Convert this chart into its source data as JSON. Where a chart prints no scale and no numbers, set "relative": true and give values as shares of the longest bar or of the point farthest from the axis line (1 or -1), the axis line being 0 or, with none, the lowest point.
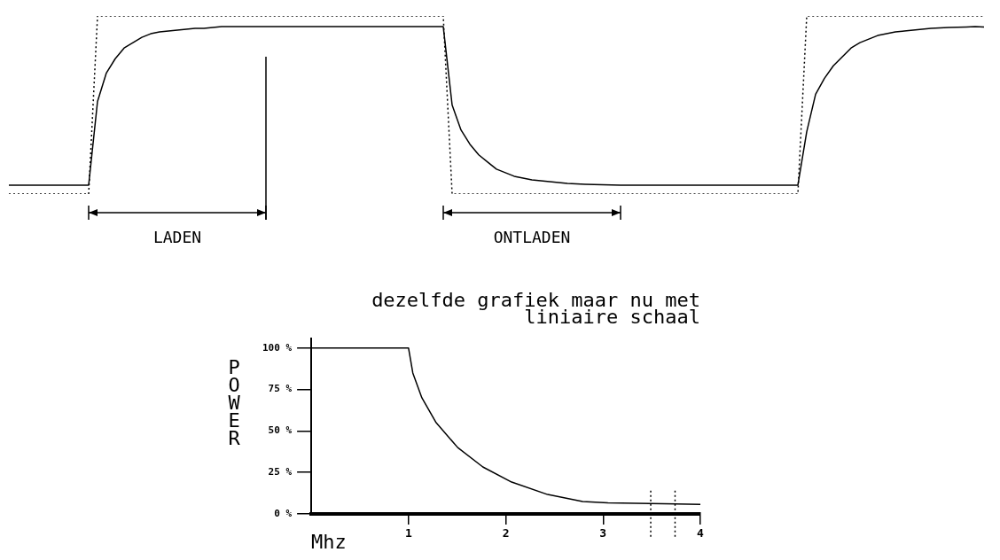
{
  "chart_data": [
    {
      "type": "line",
      "relative": true,
      "marker": "none",
      "categories": [
        null,
        null,
        null,
        null,
        null,
        null,
        null,
        null,
        null,
        null,
        null,
        null,
        null,
        null,
        null,
        null,
        null,
        null,
        null,
        null,
        null,
        null,
        null,
        null,
        null,
        null,
        null,
        null,
        null,
        null,
        null,
        null,
        null,
        null,
        null,
        null,
        null,
        null,
        null,
        null,
        null,
        null,
        null,
        null,
        null,
        null,
        null,
        null,
        null,
        null,
        null,
        null,
        null,
        null,
        null,
        null,
        null,
        null,
        null,
        null,
        null,
        null,
        null,
        null,
        null,
        null,
        null,
        null,
        null,
        null,
        null,
        null,
        null,
        null,
        null,
        null,
        null,
        null,
        null,
        null,
        null,
        null,
        null,
        null,
        null,
        null,
        null,
        null,
        null,
        null,
        null,
        null,
        null,
        null,
        null,
        null,
        null,
        null,
        null,
        null,
        null,
        null,
        null,
        null,
        null,
        null,
        null,
        null,
        null,
        null,
        null
      ],
      "series": [
        {
          "color": "#000000",
          "line_style": "dotted",
          "values": [
            0,
            0,
            0,
            0,
            0,
            0,
            0,
            0,
            0,
            0,
            1,
            1,
            1,
            1,
            1,
            1,
            1,
            1,
            1,
            1,
            1,
            1,
            1,
            1,
            1,
            1,
            1,
            1,
            1,
            1,
            1,
            1,
            1,
            1,
            1,
            1,
            1,
            1,
            1,
            1,
            1,
            1,
            1,
            1,
            1,
            1,
            1,
            1,
            1,
            1,
            0,
            0,
            0,
            0,
            0,
            0,
            0,
            0,
            0,
            0,
            0,
            0,
            0,
            0,
            0,
            0,
            0,
            0,
            0,
            0,
            0,
            0,
            0,
            0,
            0,
            0,
            0,
            0,
            0,
            0,
            0,
            0,
            0,
            0,
            0,
            0,
            0,
            0,
            0,
            0,
            1,
            1,
            1,
            1,
            1,
            1,
            1,
            1,
            1,
            1,
            1,
            1,
            1,
            1,
            1,
            1,
            1,
            1,
            1,
            1,
            1
          ]
        },
        {
          "color": "#000000",
          "line_style": "solid",
          "values": [
            0.05,
            0.05,
            0.05,
            0.05,
            0.05,
            0.05,
            0.05,
            0.05,
            0.05,
            0.05,
            0.52,
            0.68,
            0.76,
            0.82,
            0.85,
            0.88,
            0.9,
            0.91,
            0.915,
            0.92,
            0.925,
            0.93,
            0.93,
            0.935,
            0.94,
            0.94,
            0.94,
            0.94,
            0.94,
            0.94,
            0.94,
            0.94,
            0.94,
            0.94,
            0.94,
            0.94,
            0.94,
            0.94,
            0.94,
            0.94,
            0.94,
            0.94,
            0.94,
            0.94,
            0.94,
            0.94,
            0.94,
            0.94,
            0.94,
            0.94,
            0.5,
            0.36,
            0.28,
            0.22,
            0.18,
            0.14,
            0.12,
            0.1,
            0.09,
            0.08,
            0.075,
            0.07,
            0.065,
            0.06,
            0.057,
            0.055,
            0.053,
            0.052,
            0.051,
            0.05,
            0.05,
            0.05,
            0.05,
            0.05,
            0.05,
            0.05,
            0.05,
            0.05,
            0.05,
            0.05,
            0.05,
            0.05,
            0.05,
            0.05,
            0.05,
            0.05,
            0.05,
            0.05,
            0.05,
            0.05,
            0.35,
            0.56,
            0.65,
            0.72,
            0.77,
            0.82,
            0.85,
            0.87,
            0.89,
            0.9,
            0.91,
            0.915,
            0.92,
            0.925,
            0.93,
            0.933,
            0.935,
            0.937,
            0.938,
            0.94,
            0.938
          ]
        }
      ],
      "annotations": [
        "LADEN",
        "ONTLADEN"
      ]
    },
    {
      "type": "line",
      "title": "dezelfde grafiek maar nu met\nliniaire schaal",
      "xlabel": "Mhz",
      "ylabel": "POWER",
      "marker": "none",
      "xlim": [
        0,
        4
      ],
      "xticks": [
        1,
        2,
        3,
        4
      ],
      "ylim": [
        0,
        106
      ],
      "yticks": [
        {
          "value": 0,
          "label": "0 %"
        },
        {
          "value": 25,
          "label": "25 %"
        },
        {
          "value": 50,
          "label": "50 %"
        },
        {
          "value": 75,
          "label": "75 %"
        },
        {
          "value": 100,
          "label": "100 %"
        }
      ],
      "series": [
        {
          "color": "#000000",
          "x": [
            0,
            1.0,
            1.044,
            1.137,
            1.284,
            1.506,
            1.764,
            2.06,
            2.43,
            2.79,
            3.05,
            4.0
          ],
          "values": [
            100,
            100,
            85,
            70,
            55,
            40,
            28.3,
            19.2,
            11.7,
            7.5,
            6.7,
            5.8
          ]
        }
      ],
      "ref_lines": [
        {
          "axis": "x",
          "value": 3.49,
          "line_style": "dotted"
        },
        {
          "axis": "x",
          "value": 3.74,
          "line_style": "dotted"
        }
      ]
    }
  ]
}
